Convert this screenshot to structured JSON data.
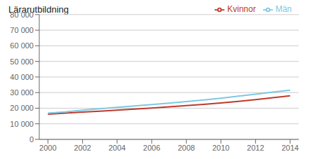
{
  "chart_data": {
    "type": "line",
    "title": "Lärarutbildning",
    "x": [
      2000,
      2001,
      2002,
      2003,
      2004,
      2005,
      2006,
      2007,
      2008,
      2009,
      2010,
      2011,
      2012,
      2013,
      2014
    ],
    "series": [
      {
        "name": "Kvinnor",
        "color": "#c0392b",
        "values": [
          16200,
          16800,
          17500,
          18100,
          18800,
          19400,
          20100,
          20900,
          21700,
          22500,
          23400,
          24400,
          25500,
          26700,
          28000
        ]
      },
      {
        "name": "Män",
        "color": "#7ec8e3",
        "values": [
          16800,
          17600,
          18700,
          19600,
          20500,
          21400,
          22300,
          23200,
          24200,
          25300,
          26400,
          27700,
          29000,
          30300,
          31500
        ]
      }
    ],
    "xlim": [
      1999.5,
      2014.5
    ],
    "xticks": [
      2000,
      2002,
      2004,
      2006,
      2008,
      2010,
      2012,
      2014
    ],
    "ylim": [
      0,
      80000
    ],
    "yticks": [
      0,
      {
        "value": 10000,
        "label": "10 000"
      },
      {
        "value": 20000,
        "label": "20 000"
      },
      {
        "value": 30000,
        "label": "30 000"
      },
      {
        "value": 40000,
        "label": "40 000"
      },
      {
        "value": 50000,
        "label": "50 000"
      },
      {
        "value": 60000,
        "label": "60 000"
      },
      {
        "value": 70000,
        "label": "70 000"
      },
      {
        "value": 80000,
        "label": "80 000"
      }
    ],
    "grid": true,
    "legend": "upper right"
  }
}
